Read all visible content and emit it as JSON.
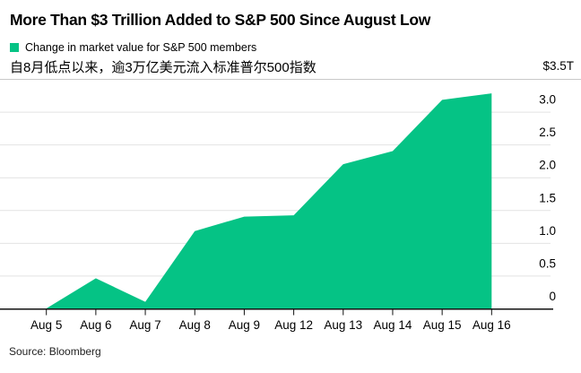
{
  "header": {
    "title": "More Than $3 Trillion Added to S&P 500 Since August Low",
    "legend": {
      "label": "Change in market value for S&P 500 members",
      "swatch_color": "#05c385"
    },
    "subtitle_zh": "自8月低点以来，逾3万亿美元流入标准普尔500指数",
    "axis_top_label": "$3.5T"
  },
  "footer": {
    "source": "Source: Bloomberg"
  },
  "colors": {
    "area_green": "#05c385",
    "gridline": "#e2e2e2",
    "separator": "#c9c9c9",
    "baseline": "#111111",
    "tick": "#111111",
    "label_text": "#000000"
  },
  "chart_data": {
    "type": "area",
    "title": "More Than $3 Trillion Added to S&P 500 Since August Low",
    "series_name": "Change in market value for S&P 500 members",
    "categories": [
      "Aug 5",
      "Aug 6",
      "Aug 7",
      "Aug 8",
      "Aug 9",
      "Aug 12",
      "Aug 13",
      "Aug 14",
      "Aug 15",
      "Aug 16"
    ],
    "values": [
      0,
      0.46,
      0.1,
      1.18,
      1.4,
      1.42,
      2.2,
      2.4,
      3.18,
      3.28
    ],
    "unit": "trillions of USD",
    "xlabel": "",
    "ylabel": "$T",
    "ylim": [
      0,
      3.5
    ],
    "ytick_values": [
      0,
      0.5,
      1.0,
      1.5,
      2.0,
      2.5,
      3.0
    ],
    "ytick_labels": [
      "0",
      "0.5",
      "1.0",
      "1.5",
      "2.0",
      "2.5",
      "3.0"
    ],
    "ytop_label": "$3.5T",
    "grid": "horizontal",
    "yaxis_side": "right",
    "legend_position": "top-left"
  }
}
